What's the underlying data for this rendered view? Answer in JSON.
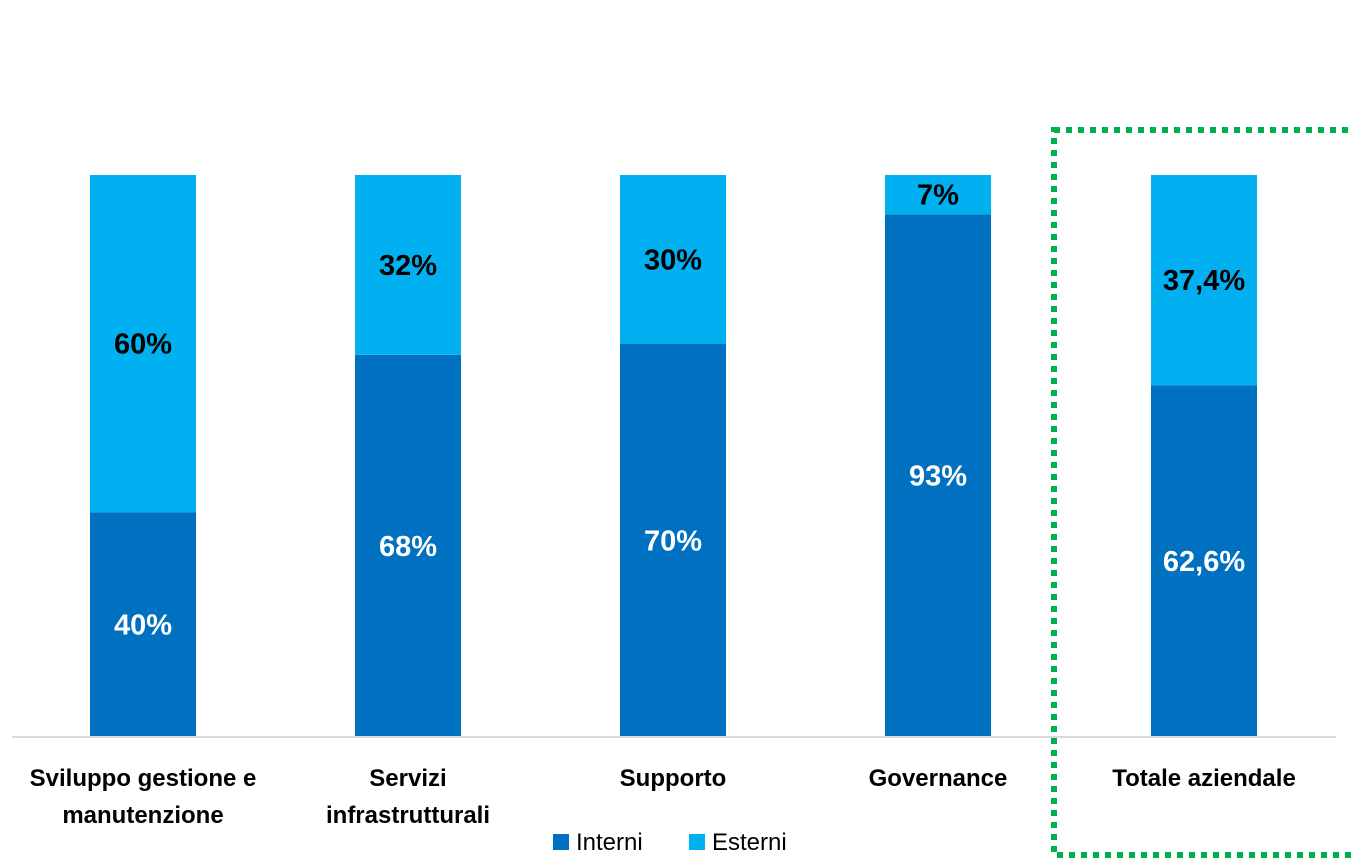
{
  "chart_data": {
    "type": "bar",
    "stacked": true,
    "percent_stacked": true,
    "categories": [
      [
        "Sviluppo gestione e",
        "manutenzione"
      ],
      [
        "Servizi",
        "infrastrutturali"
      ],
      [
        "Supporto"
      ],
      [
        "Governance"
      ],
      [
        "Totale aziendale"
      ]
    ],
    "series": [
      {
        "name": "Interni",
        "color": "#0070C0",
        "values": [
          40,
          68,
          70,
          93,
          62.6
        ],
        "labels": [
          "40%",
          "68%",
          "70%",
          "93%",
          "62,6%"
        ],
        "label_color": "#FFFFFF"
      },
      {
        "name": "Esterni",
        "color": "#00B0F0",
        "values": [
          60,
          32,
          30,
          7,
          37.4
        ],
        "labels": [
          "60%",
          "32%",
          "30%",
          "7%",
          "37,4%"
        ],
        "label_color": "#000000"
      }
    ],
    "ylim": [
      0,
      100
    ],
    "grid": false,
    "legend": "bottom",
    "highlight": {
      "category": "Totale aziendale",
      "style": "dotted-box",
      "color": "#00B050"
    }
  }
}
